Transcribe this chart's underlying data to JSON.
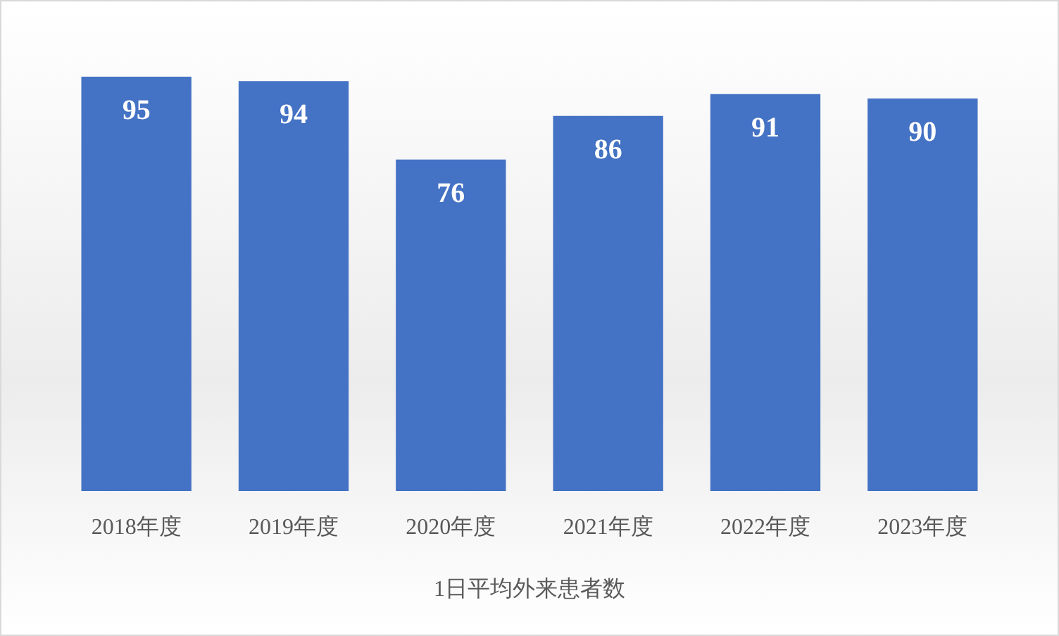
{
  "chart_data": {
    "type": "bar",
    "xlabel": "1日平均外来患者数",
    "categories": [
      "2018年度",
      "2019年度",
      "2020年度",
      "2021年度",
      "2022年度",
      "2023年度"
    ],
    "values": [
      95,
      94,
      76,
      86,
      91,
      90
    ],
    "color": "#4472c4",
    "data_labels": true
  }
}
